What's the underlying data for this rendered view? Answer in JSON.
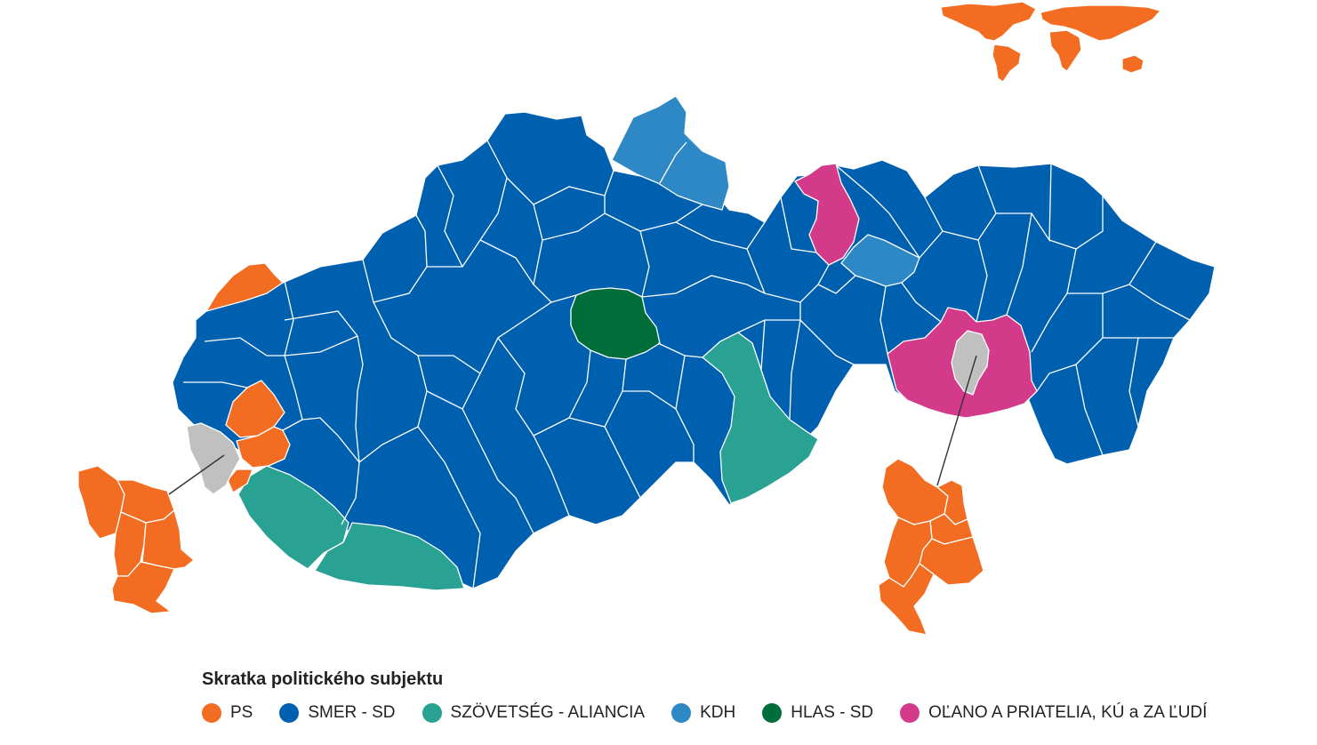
{
  "legend": {
    "title": "Skratka politického subjektu",
    "items": [
      {
        "label": "PS",
        "color": "#f26d21"
      },
      {
        "label": "SMER - SD",
        "color": "#0060b0"
      },
      {
        "label": "SZÖVETSÉG - ALIANCIA",
        "color": "#29a293"
      },
      {
        "label": "KDH",
        "color": "#2e88c5"
      },
      {
        "label": "HLAS - SD",
        "color": "#006e3a"
      },
      {
        "label": "OĽANO A PRIATELIA, KÚ a ZA ĽUDÍ",
        "color": "#d43a8a"
      }
    ]
  },
  "colors": {
    "PS": "#f26d21",
    "SMER-SD": "#0060b0",
    "SZOVETSEG": "#29a293",
    "KDH": "#2e88c5",
    "HLAS-SD": "#006e3a",
    "OLANO": "#d43a8a",
    "no_winner": "#c0c0c0",
    "boundary": "#ffffff"
  }
}
